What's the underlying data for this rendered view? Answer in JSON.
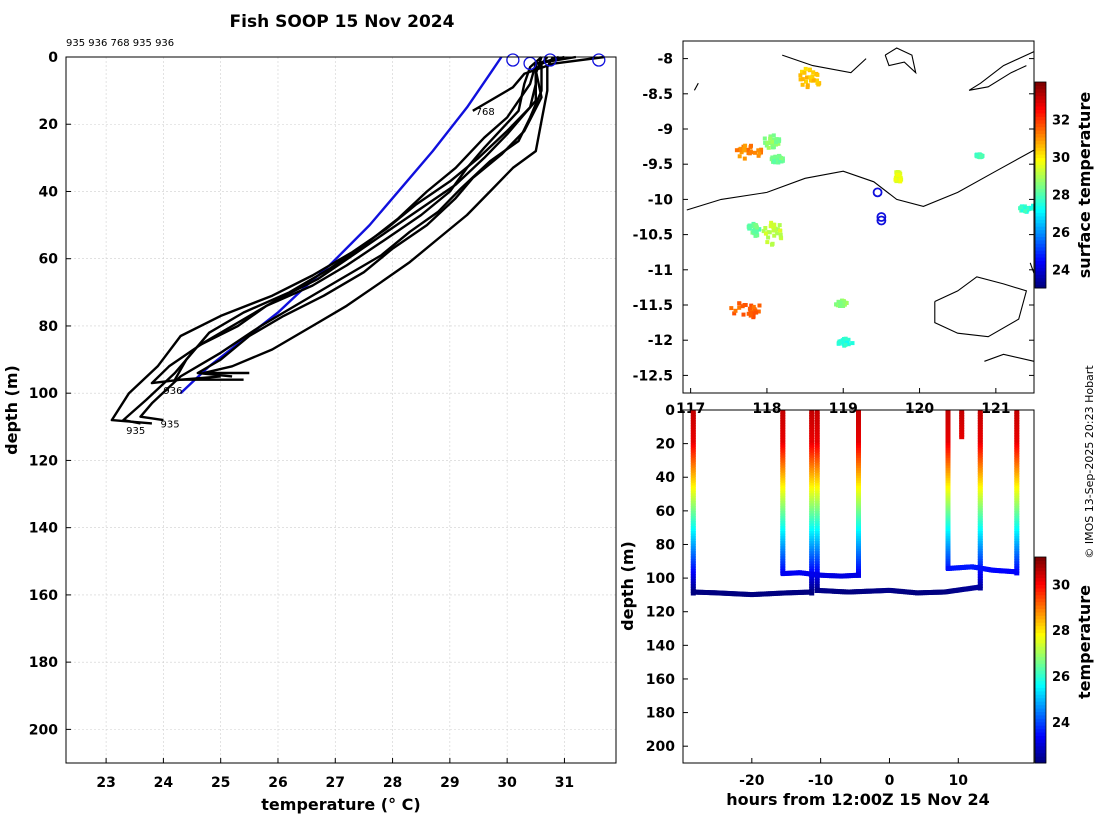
{
  "title": "Fish SOOP 15 Nov 2024",
  "credit": "© IMOS 13-Sep-2025 20:23 Hobart",
  "profile_ids_top": "935 936 768 935 936",
  "chart_data": [
    {
      "type": "line",
      "name": "temperature-depth-profiles",
      "xlabel": "temperature (° C)",
      "ylabel": "depth (m)",
      "xlim": [
        22.3,
        31.9
      ],
      "ylim": [
        210,
        0
      ],
      "xticks": [
        23,
        24,
        25,
        26,
        27,
        28,
        29,
        30,
        31
      ],
      "yticks": [
        0,
        20,
        40,
        60,
        80,
        100,
        120,
        140,
        160,
        180,
        200
      ],
      "surface_markers": [
        [
          30.1,
          0
        ],
        [
          30.4,
          1
        ],
        [
          30.75,
          0
        ],
        [
          31.6,
          0
        ]
      ],
      "series": [
        {
          "name": "blue-profile",
          "color": "#1010dd",
          "points": [
            [
              29.9,
              0
            ],
            [
              29.7,
              5
            ],
            [
              29.3,
              15
            ],
            [
              28.7,
              28
            ],
            [
              28.2,
              38
            ],
            [
              27.6,
              50
            ],
            [
              26.9,
              62
            ],
            [
              26.5,
              68
            ],
            [
              26.0,
              76
            ],
            [
              25.4,
              84
            ],
            [
              24.8,
              92
            ],
            [
              24.3,
              100
            ]
          ]
        },
        {
          "name": "768",
          "color": "#000000",
          "points": [
            [
              31.7,
              0
            ],
            [
              30.8,
              2
            ],
            [
              30.3,
              5
            ],
            [
              30.1,
              9
            ],
            [
              29.6,
              14
            ],
            [
              29.4,
              16
            ]
          ]
        },
        {
          "name": "profile-a",
          "color": "#000000",
          "points": [
            [
              30.6,
              0
            ],
            [
              30.4,
              3
            ],
            [
              30.3,
              8
            ],
            [
              30.2,
              16
            ],
            [
              29.6,
              27
            ],
            [
              29.3,
              33
            ],
            [
              29.0,
              40
            ],
            [
              28.5,
              47
            ],
            [
              27.9,
              54
            ],
            [
              27.2,
              62
            ],
            [
              26.6,
              68
            ],
            [
              25.8,
              74
            ],
            [
              25.3,
              80
            ],
            [
              24.6,
              86
            ],
            [
              24.2,
              94
            ],
            [
              23.7,
              102
            ],
            [
              23.3,
              108
            ],
            [
              23.6,
              109
            ]
          ]
        },
        {
          "name": "profile-b",
          "color": "#000000",
          "points": [
            [
              31.0,
              0
            ],
            [
              30.5,
              2
            ],
            [
              30.4,
              8
            ],
            [
              30.0,
              18
            ],
            [
              29.6,
              24
            ],
            [
              29.1,
              33
            ],
            [
              28.6,
              40
            ],
            [
              28.1,
              48
            ],
            [
              27.5,
              56
            ],
            [
              26.9,
              63
            ],
            [
              26.2,
              70
            ],
            [
              25.4,
              76
            ],
            [
              24.8,
              82
            ],
            [
              24.4,
              90
            ],
            [
              24.2,
              96
            ],
            [
              25.4,
              96
            ]
          ]
        },
        {
          "name": "profile-c",
          "color": "#000000",
          "points": [
            [
              30.9,
              0
            ],
            [
              30.6,
              2
            ],
            [
              30.6,
              10
            ],
            [
              30.4,
              18
            ],
            [
              30.2,
              25
            ],
            [
              29.7,
              31
            ],
            [
              29.2,
              39
            ],
            [
              28.8,
              46
            ],
            [
              28.3,
              52
            ],
            [
              27.8,
              59
            ],
            [
              27.1,
              66
            ],
            [
              26.4,
              73
            ],
            [
              25.7,
              80
            ],
            [
              25.0,
              88
            ],
            [
              24.3,
              95
            ],
            [
              23.8,
              103
            ],
            [
              23.6,
              107
            ],
            [
              24.0,
              108
            ]
          ]
        },
        {
          "name": "profile-d",
          "color": "#000000",
          "points": [
            [
              30.7,
              0
            ],
            [
              30.5,
              4
            ],
            [
              30.6,
              12
            ],
            [
              30.3,
              22
            ],
            [
              29.9,
              29
            ],
            [
              29.4,
              36
            ],
            [
              29.1,
              42
            ],
            [
              28.6,
              50
            ],
            [
              28.0,
              57
            ],
            [
              27.5,
              64
            ],
            [
              26.8,
              71
            ],
            [
              26.1,
              77
            ],
            [
              25.5,
              83
            ],
            [
              25.0,
              90
            ],
            [
              24.6,
              94
            ],
            [
              25.2,
              95
            ]
          ]
        },
        {
          "name": "profile-e",
          "color": "#000000",
          "points": [
            [
              30.8,
              0
            ],
            [
              30.7,
              3
            ],
            [
              30.7,
              10
            ],
            [
              30.6,
              19
            ],
            [
              30.5,
              28
            ],
            [
              30.1,
              33
            ],
            [
              29.7,
              40
            ],
            [
              29.3,
              47
            ],
            [
              28.8,
              54
            ],
            [
              28.3,
              61
            ],
            [
              27.8,
              67
            ],
            [
              27.2,
              74
            ],
            [
              26.6,
              80
            ],
            [
              25.9,
              87
            ],
            [
              25.2,
              92
            ],
            [
              24.7,
              94
            ],
            [
              25.5,
              94
            ]
          ]
        },
        {
          "name": "profile-f",
          "color": "#000000",
          "points": [
            [
              31.2,
              0
            ],
            [
              30.5,
              2
            ],
            [
              30.5,
              8
            ],
            [
              30.4,
              15
            ],
            [
              30.0,
              22
            ],
            [
              29.5,
              30
            ],
            [
              29.0,
              37
            ],
            [
              28.4,
              44
            ],
            [
              27.9,
              51
            ],
            [
              27.3,
              58
            ],
            [
              26.6,
              65
            ],
            [
              25.9,
              71
            ],
            [
              25.0,
              77
            ],
            [
              24.3,
              83
            ],
            [
              23.9,
              92
            ],
            [
              23.4,
              100
            ],
            [
              23.1,
              108
            ],
            [
              23.8,
              109
            ]
          ]
        },
        {
          "name": "profile-g",
          "color": "#000000",
          "points": [
            [
              30.6,
              0
            ],
            [
              30.5,
              5
            ],
            [
              30.5,
              13
            ],
            [
              30.0,
              23
            ],
            [
              29.6,
              30
            ],
            [
              29.1,
              38
            ],
            [
              28.5,
              45
            ],
            [
              27.9,
              52
            ],
            [
              27.3,
              59
            ],
            [
              26.7,
              66
            ],
            [
              26.0,
              72
            ],
            [
              25.3,
              79
            ],
            [
              24.7,
              85
            ],
            [
              24.1,
              92
            ],
            [
              23.8,
              97
            ],
            [
              24.3,
              96
            ],
            [
              25.0,
              95
            ]
          ]
        }
      ],
      "labels": [
        {
          "text": "768",
          "x": 29.45,
          "y": 16
        },
        {
          "text": "936",
          "x": 24.0,
          "y": 99
        },
        {
          "text": "935",
          "x": 23.35,
          "y": 111
        },
        {
          "text": "935",
          "x": 23.95,
          "y": 109
        }
      ]
    },
    {
      "type": "heatmap",
      "name": "surface-temperature-map",
      "colorbar_label": "surface temperature",
      "xlim": [
        116.9,
        121.5
      ],
      "ylim": [
        -12.75,
        -7.75
      ],
      "xticks": [
        117,
        118,
        119,
        120,
        121
      ],
      "xtick_labels": [
        "117",
        "118",
        "119",
        "120",
        "121"
      ],
      "yticks": [
        -8,
        -8.5,
        -9,
        -9.5,
        -10,
        -10.5,
        -11,
        -11.5,
        -12,
        -12.5
      ],
      "ytick_labels": [
        "-8",
        "-8.5",
        "-9",
        "-9.5",
        "-10",
        "-10.5",
        "-11",
        "-11.5",
        "-12",
        "-12.5"
      ],
      "clim": [
        23,
        34
      ],
      "cticks": [
        24,
        26,
        28,
        30,
        32
      ],
      "patches": [
        {
          "lon": 118.55,
          "lat": -8.25,
          "value": 30.5,
          "rx": 0.15,
          "ry": 0.15
        },
        {
          "lon": 117.75,
          "lat": -9.3,
          "value": 31.2,
          "rx": 0.18,
          "ry": 0.1
        },
        {
          "lon": 118.05,
          "lat": -9.15,
          "value": 28.6,
          "rx": 0.12,
          "ry": 0.1
        },
        {
          "lon": 118.1,
          "lat": -9.4,
          "value": 28.3,
          "rx": 0.1,
          "ry": 0.05
        },
        {
          "lon": 117.8,
          "lat": -10.4,
          "value": 28.2,
          "rx": 0.08,
          "ry": 0.1
        },
        {
          "lon": 118.05,
          "lat": -10.45,
          "value": 29.2,
          "rx": 0.12,
          "ry": 0.18
        },
        {
          "lon": 117.7,
          "lat": -11.55,
          "value": 31.6,
          "rx": 0.22,
          "ry": 0.12
        },
        {
          "lon": 119.0,
          "lat": -12.0,
          "value": 27.5,
          "rx": 0.1,
          "ry": 0.05
        },
        {
          "lon": 119.7,
          "lat": -9.65,
          "value": 29.6,
          "rx": 0.05,
          "ry": 0.08
        },
        {
          "lon": 120.75,
          "lat": -9.35,
          "value": 27.8,
          "rx": 0.05,
          "ry": 0.03
        },
        {
          "lon": 121.4,
          "lat": -10.1,
          "value": 27.6,
          "rx": 0.12,
          "ry": 0.05
        },
        {
          "lon": 118.95,
          "lat": -11.45,
          "value": 28.7,
          "rx": 0.08,
          "ry": 0.04
        }
      ],
      "coastlines": [
        [
          [
            116.95,
            -10.15
          ],
          [
            117.4,
            -10.0
          ],
          [
            118.0,
            -9.9
          ],
          [
            118.5,
            -9.7
          ],
          [
            119.0,
            -9.6
          ],
          [
            119.4,
            -9.75
          ],
          [
            119.7,
            -10.0
          ],
          [
            120.05,
            -10.1
          ],
          [
            120.5,
            -9.9
          ],
          [
            121.0,
            -9.6
          ],
          [
            121.5,
            -9.3
          ]
        ],
        [
          [
            118.2,
            -7.95
          ],
          [
            118.6,
            -8.1
          ],
          [
            119.1,
            -8.2
          ],
          [
            119.3,
            -8.0
          ]
        ],
        [
          [
            117.05,
            -8.45
          ],
          [
            117.1,
            -8.35
          ]
        ],
        [
          [
            119.55,
            -7.95
          ],
          [
            119.7,
            -7.85
          ],
          [
            119.9,
            -7.95
          ],
          [
            119.95,
            -8.2
          ],
          [
            119.8,
            -8.05
          ],
          [
            119.6,
            -8.1
          ],
          [
            119.55,
            -7.95
          ]
        ],
        [
          [
            121.5,
            -7.9
          ],
          [
            121.1,
            -8.1
          ],
          [
            120.8,
            -8.35
          ],
          [
            120.65,
            -8.45
          ],
          [
            120.9,
            -8.4
          ],
          [
            121.2,
            -8.2
          ],
          [
            121.4,
            -8.1
          ]
        ],
        [
          [
            120.2,
            -11.45
          ],
          [
            120.5,
            -11.3
          ],
          [
            120.75,
            -11.1
          ],
          [
            121.1,
            -11.2
          ],
          [
            121.4,
            -11.3
          ],
          [
            121.3,
            -11.7
          ],
          [
            120.9,
            -11.95
          ],
          [
            120.5,
            -11.9
          ],
          [
            120.2,
            -11.75
          ],
          [
            120.2,
            -11.45
          ]
        ],
        [
          [
            120.85,
            -12.3
          ],
          [
            121.1,
            -12.2
          ],
          [
            121.5,
            -12.3
          ]
        ],
        [
          [
            121.45,
            -10.9
          ],
          [
            121.5,
            -11.05
          ]
        ]
      ],
      "track": [
        [
          119.45,
          -9.9
        ],
        [
          119.5,
          -10.25
        ],
        [
          119.5,
          -10.3
        ]
      ]
    },
    {
      "type": "scatter",
      "name": "depth-time-section",
      "xlabel": "hours from 12:00Z 15 Nov 24",
      "ylabel": "depth (m)",
      "colorbar_label": "temperature",
      "xlim": [
        -30,
        21
      ],
      "ylim": [
        210,
        0
      ],
      "xticks": [
        -20,
        -10,
        0,
        10
      ],
      "yticks": [
        0,
        20,
        40,
        60,
        80,
        100,
        120,
        140,
        160,
        180,
        200
      ],
      "clim": [
        22.2,
        31.2
      ],
      "cticks": [
        24,
        26,
        28,
        30
      ],
      "casts": [
        {
          "t": -28.5,
          "bottom": 108
        },
        {
          "t": -15.5,
          "bottom": 97
        },
        {
          "t": -11.3,
          "bottom": 108
        },
        {
          "t": -10.5,
          "bottom": 107
        },
        {
          "t": -4.5,
          "bottom": 98
        },
        {
          "t": 8.5,
          "bottom": 94
        },
        {
          "t": 10.5,
          "bottom": 16
        },
        {
          "t": 13.2,
          "bottom": 105
        },
        {
          "t": 18.5,
          "bottom": 96
        }
      ],
      "tow_segments": [
        [
          [
            -28.5,
            108
          ],
          [
            -25,
            108.5
          ],
          [
            -20,
            109.5
          ],
          [
            -15,
            108.5
          ],
          [
            -11.3,
            108
          ]
        ],
        [
          [
            -15.5,
            97
          ],
          [
            -13,
            96.5
          ],
          [
            -10,
            98
          ],
          [
            -7,
            98.5
          ],
          [
            -4.5,
            98
          ]
        ],
        [
          [
            -10.5,
            107
          ],
          [
            -6,
            108
          ],
          [
            0,
            107
          ],
          [
            4,
            108.5
          ],
          [
            8,
            108
          ],
          [
            13.2,
            105
          ]
        ],
        [
          [
            8.5,
            94
          ],
          [
            12,
            93
          ],
          [
            15,
            95
          ],
          [
            18.5,
            96
          ]
        ]
      ]
    }
  ]
}
